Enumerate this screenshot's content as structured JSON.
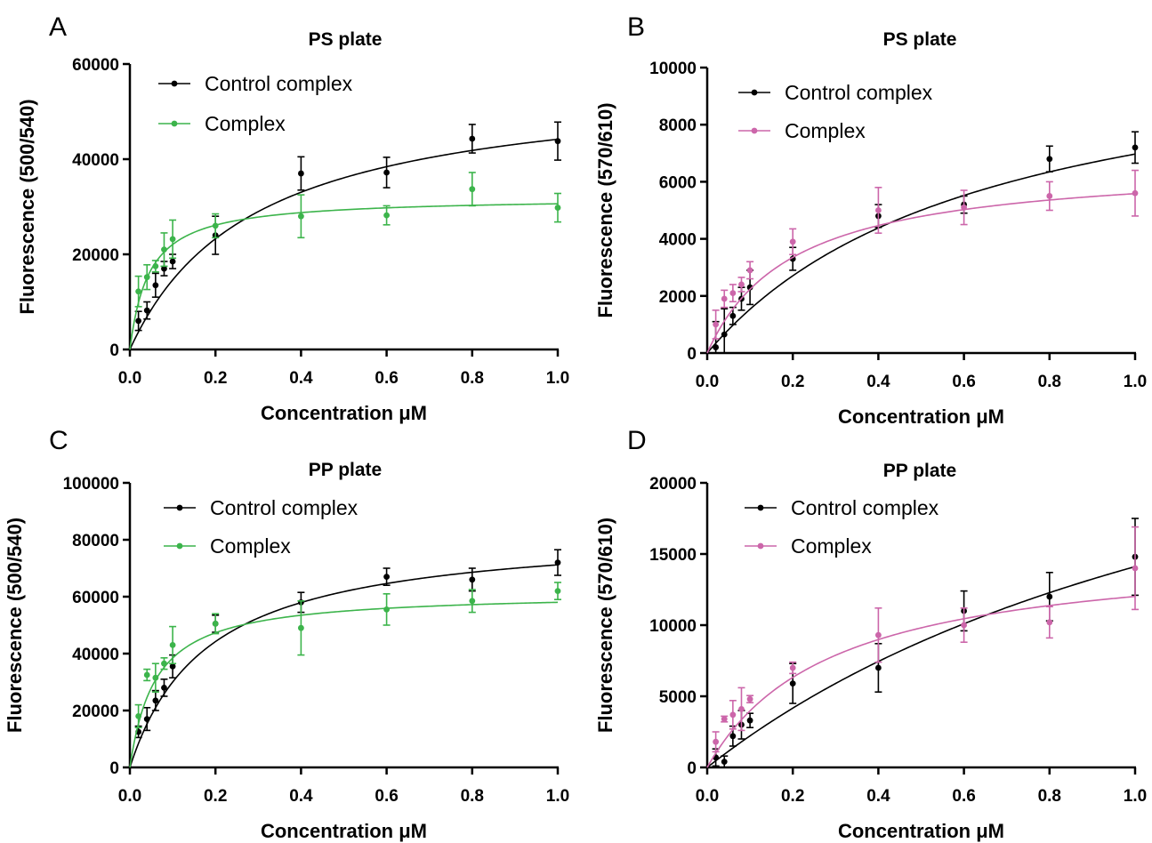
{
  "chart_data": [
    {
      "type": "scatter",
      "panel_label": "A",
      "title": "PS plate",
      "xlabel": "Concentration μM",
      "ylabel": "Fluorescence (500/540)",
      "xlim": [
        0,
        1
      ],
      "ylim": [
        0,
        60000
      ],
      "x_ticks": [
        "0.0",
        "0.2",
        "0.4",
        "0.6",
        "0.8",
        "1.0"
      ],
      "y_ticks": [
        "0",
        "20000",
        "40000",
        "60000"
      ],
      "legend": "top-left",
      "grid": false,
      "series": [
        {
          "name": "Control complex",
          "color": "#000000",
          "points": [
            {
              "x": 0.02,
              "y": 6000,
              "err": 2000
            },
            {
              "x": 0.04,
              "y": 8200,
              "err": 1800
            },
            {
              "x": 0.06,
              "y": 13500,
              "err": 2500
            },
            {
              "x": 0.08,
              "y": 17000,
              "err": 1500
            },
            {
              "x": 0.1,
              "y": 18500,
              "err": 1500
            },
            {
              "x": 0.2,
              "y": 24000,
              "err": 4000
            },
            {
              "x": 0.4,
              "y": 37000,
              "err": 3500
            },
            {
              "x": 0.6,
              "y": 37200,
              "err": 3200
            },
            {
              "x": 0.8,
              "y": 44300,
              "err": 3000
            },
            {
              "x": 1.0,
              "y": 43800,
              "err": 4000
            }
          ],
          "fit": {
            "bmax": 57000,
            "kd": 0.29
          }
        },
        {
          "name": "Complex",
          "color": "#3cb44b",
          "points": [
            {
              "x": 0.02,
              "y": 12200,
              "err": 3200
            },
            {
              "x": 0.04,
              "y": 15200,
              "err": 2600
            },
            {
              "x": 0.06,
              "y": 17500,
              "err": 1200
            },
            {
              "x": 0.08,
              "y": 21000,
              "err": 3500
            },
            {
              "x": 0.1,
              "y": 23200,
              "err": 4000
            },
            {
              "x": 0.2,
              "y": 26000,
              "err": 2500
            },
            {
              "x": 0.4,
              "y": 28000,
              "err": 4500
            },
            {
              "x": 0.6,
              "y": 28200,
              "err": 2000
            },
            {
              "x": 0.8,
              "y": 33700,
              "err": 3500
            },
            {
              "x": 1.0,
              "y": 29800,
              "err": 3000
            }
          ],
          "fit": {
            "bmax": 32000,
            "kd": 0.045
          }
        }
      ]
    },
    {
      "type": "scatter",
      "panel_label": "B",
      "title": "PS plate",
      "xlabel": "Concentration μM",
      "ylabel": "Fluorescence (570/610)",
      "xlim": [
        0,
        1
      ],
      "ylim": [
        0,
        10000
      ],
      "x_ticks": [
        "0.0",
        "0.2",
        "0.4",
        "0.6",
        "0.8",
        "1.0"
      ],
      "y_ticks": [
        "0",
        "2000",
        "4000",
        "6000",
        "8000",
        "10000"
      ],
      "legend": "top-left",
      "grid": false,
      "series": [
        {
          "name": "Control complex",
          "color": "#000000",
          "points": [
            {
              "x": 0.02,
              "y": 200,
              "err": 900
            },
            {
              "x": 0.04,
              "y": 650,
              "err": 900
            },
            {
              "x": 0.06,
              "y": 1300,
              "err": 300
            },
            {
              "x": 0.08,
              "y": 1900,
              "err": 400
            },
            {
              "x": 0.1,
              "y": 2300,
              "err": 600
            },
            {
              "x": 0.2,
              "y": 3300,
              "err": 400
            },
            {
              "x": 0.4,
              "y": 4800,
              "err": 400
            },
            {
              "x": 0.6,
              "y": 5200,
              "err": 300
            },
            {
              "x": 0.8,
              "y": 6800,
              "err": 450
            },
            {
              "x": 1.0,
              "y": 7200,
              "err": 550
            }
          ],
          "fit": {
            "bmax": 11500,
            "kd": 0.65
          }
        },
        {
          "name": "Complex",
          "color": "#cc66aa",
          "points": [
            {
              "x": 0.02,
              "y": 1000,
              "err": 500
            },
            {
              "x": 0.04,
              "y": 1900,
              "err": 300
            },
            {
              "x": 0.06,
              "y": 2100,
              "err": 300
            },
            {
              "x": 0.08,
              "y": 2400,
              "err": 250
            },
            {
              "x": 0.1,
              "y": 2900,
              "err": 300
            },
            {
              "x": 0.2,
              "y": 3900,
              "err": 450
            },
            {
              "x": 0.4,
              "y": 5000,
              "err": 800
            },
            {
              "x": 0.6,
              "y": 5100,
              "err": 600
            },
            {
              "x": 0.8,
              "y": 5500,
              "err": 500
            },
            {
              "x": 1.0,
              "y": 5600,
              "err": 800
            }
          ],
          "fit": {
            "bmax": 6700,
            "kd": 0.2
          }
        }
      ]
    },
    {
      "type": "scatter",
      "panel_label": "C",
      "title": "PP plate",
      "xlabel": "Concentration μM",
      "ylabel": "Fluorescence (500/540)",
      "xlim": [
        0,
        1
      ],
      "ylim": [
        0,
        100000
      ],
      "x_ticks": [
        "0.0",
        "0.2",
        "0.4",
        "0.6",
        "0.8",
        "1.0"
      ],
      "y_ticks": [
        "0",
        "20000",
        "40000",
        "60000",
        "80000",
        "100000"
      ],
      "legend": "top-left",
      "grid": false,
      "series": [
        {
          "name": "Control complex",
          "color": "#000000",
          "points": [
            {
              "x": 0.02,
              "y": 12500,
              "err": 2000
            },
            {
              "x": 0.04,
              "y": 17000,
              "err": 4000
            },
            {
              "x": 0.06,
              "y": 23500,
              "err": 3500
            },
            {
              "x": 0.08,
              "y": 28000,
              "err": 3000
            },
            {
              "x": 0.1,
              "y": 35500,
              "err": 4000
            },
            {
              "x": 0.2,
              "y": 50500,
              "err": 3000
            },
            {
              "x": 0.4,
              "y": 58000,
              "err": 3500
            },
            {
              "x": 0.6,
              "y": 67000,
              "err": 3000
            },
            {
              "x": 0.8,
              "y": 66000,
              "err": 4000
            },
            {
              "x": 1.0,
              "y": 72000,
              "err": 4500
            }
          ],
          "fit": {
            "bmax": 84000,
            "kd": 0.18
          }
        },
        {
          "name": "Complex",
          "color": "#3cb44b",
          "points": [
            {
              "x": 0.02,
              "y": 18000,
              "err": 4000
            },
            {
              "x": 0.04,
              "y": 32500,
              "err": 2000
            },
            {
              "x": 0.06,
              "y": 31500,
              "err": 5000
            },
            {
              "x": 0.08,
              "y": 36500,
              "err": 2000
            },
            {
              "x": 0.1,
              "y": 43000,
              "err": 6500
            },
            {
              "x": 0.2,
              "y": 50500,
              "err": 3500
            },
            {
              "x": 0.4,
              "y": 49000,
              "err": 9500
            },
            {
              "x": 0.6,
              "y": 55500,
              "err": 5500
            },
            {
              "x": 0.8,
              "y": 58500,
              "err": 4000
            },
            {
              "x": 1.0,
              "y": 62000,
              "err": 3000
            }
          ],
          "fit": {
            "bmax": 61500,
            "kd": 0.06
          }
        }
      ]
    },
    {
      "type": "scatter",
      "panel_label": "D",
      "title": "PP plate",
      "xlabel": "Concentration μM",
      "ylabel": "Fluorescence (570/610)",
      "xlim": [
        0,
        1
      ],
      "ylim": [
        0,
        20000
      ],
      "x_ticks": [
        "0.0",
        "0.2",
        "0.4",
        "0.6",
        "0.8",
        "1.0"
      ],
      "y_ticks": [
        "0",
        "5000",
        "10000",
        "15000",
        "20000"
      ],
      "legend": "top-left",
      "grid": false,
      "series": [
        {
          "name": "Control complex",
          "color": "#000000",
          "points": [
            {
              "x": 0.02,
              "y": 700,
              "err": 600
            },
            {
              "x": 0.04,
              "y": 400,
              "err": 400
            },
            {
              "x": 0.06,
              "y": 2200,
              "err": 700
            },
            {
              "x": 0.08,
              "y": 3000,
              "err": 1000
            },
            {
              "x": 0.1,
              "y": 3300,
              "err": 500
            },
            {
              "x": 0.2,
              "y": 5900,
              "err": 1400
            },
            {
              "x": 0.4,
              "y": 7000,
              "err": 1700
            },
            {
              "x": 0.6,
              "y": 11000,
              "err": 1400
            },
            {
              "x": 0.8,
              "y": 12000,
              "err": 1700
            },
            {
              "x": 1.0,
              "y": 14800,
              "err": 2700
            }
          ],
          "fit": {
            "bmax": 35000,
            "kd": 1.48
          }
        },
        {
          "name": "Complex",
          "color": "#cc66aa",
          "points": [
            {
              "x": 0.02,
              "y": 1800,
              "err": 700
            },
            {
              "x": 0.04,
              "y": 3400,
              "err": 200
            },
            {
              "x": 0.06,
              "y": 3700,
              "err": 1000
            },
            {
              "x": 0.08,
              "y": 4100,
              "err": 1500
            },
            {
              "x": 0.1,
              "y": 4800,
              "err": 250
            },
            {
              "x": 0.2,
              "y": 7000,
              "err": 400
            },
            {
              "x": 0.4,
              "y": 9300,
              "err": 1900
            },
            {
              "x": 0.6,
              "y": 10000,
              "err": 1200
            },
            {
              "x": 0.8,
              "y": 10200,
              "err": 1100
            },
            {
              "x": 1.0,
              "y": 14000,
              "err": 2900
            }
          ],
          "fit": {
            "bmax": 15500,
            "kd": 0.29
          }
        }
      ]
    }
  ]
}
